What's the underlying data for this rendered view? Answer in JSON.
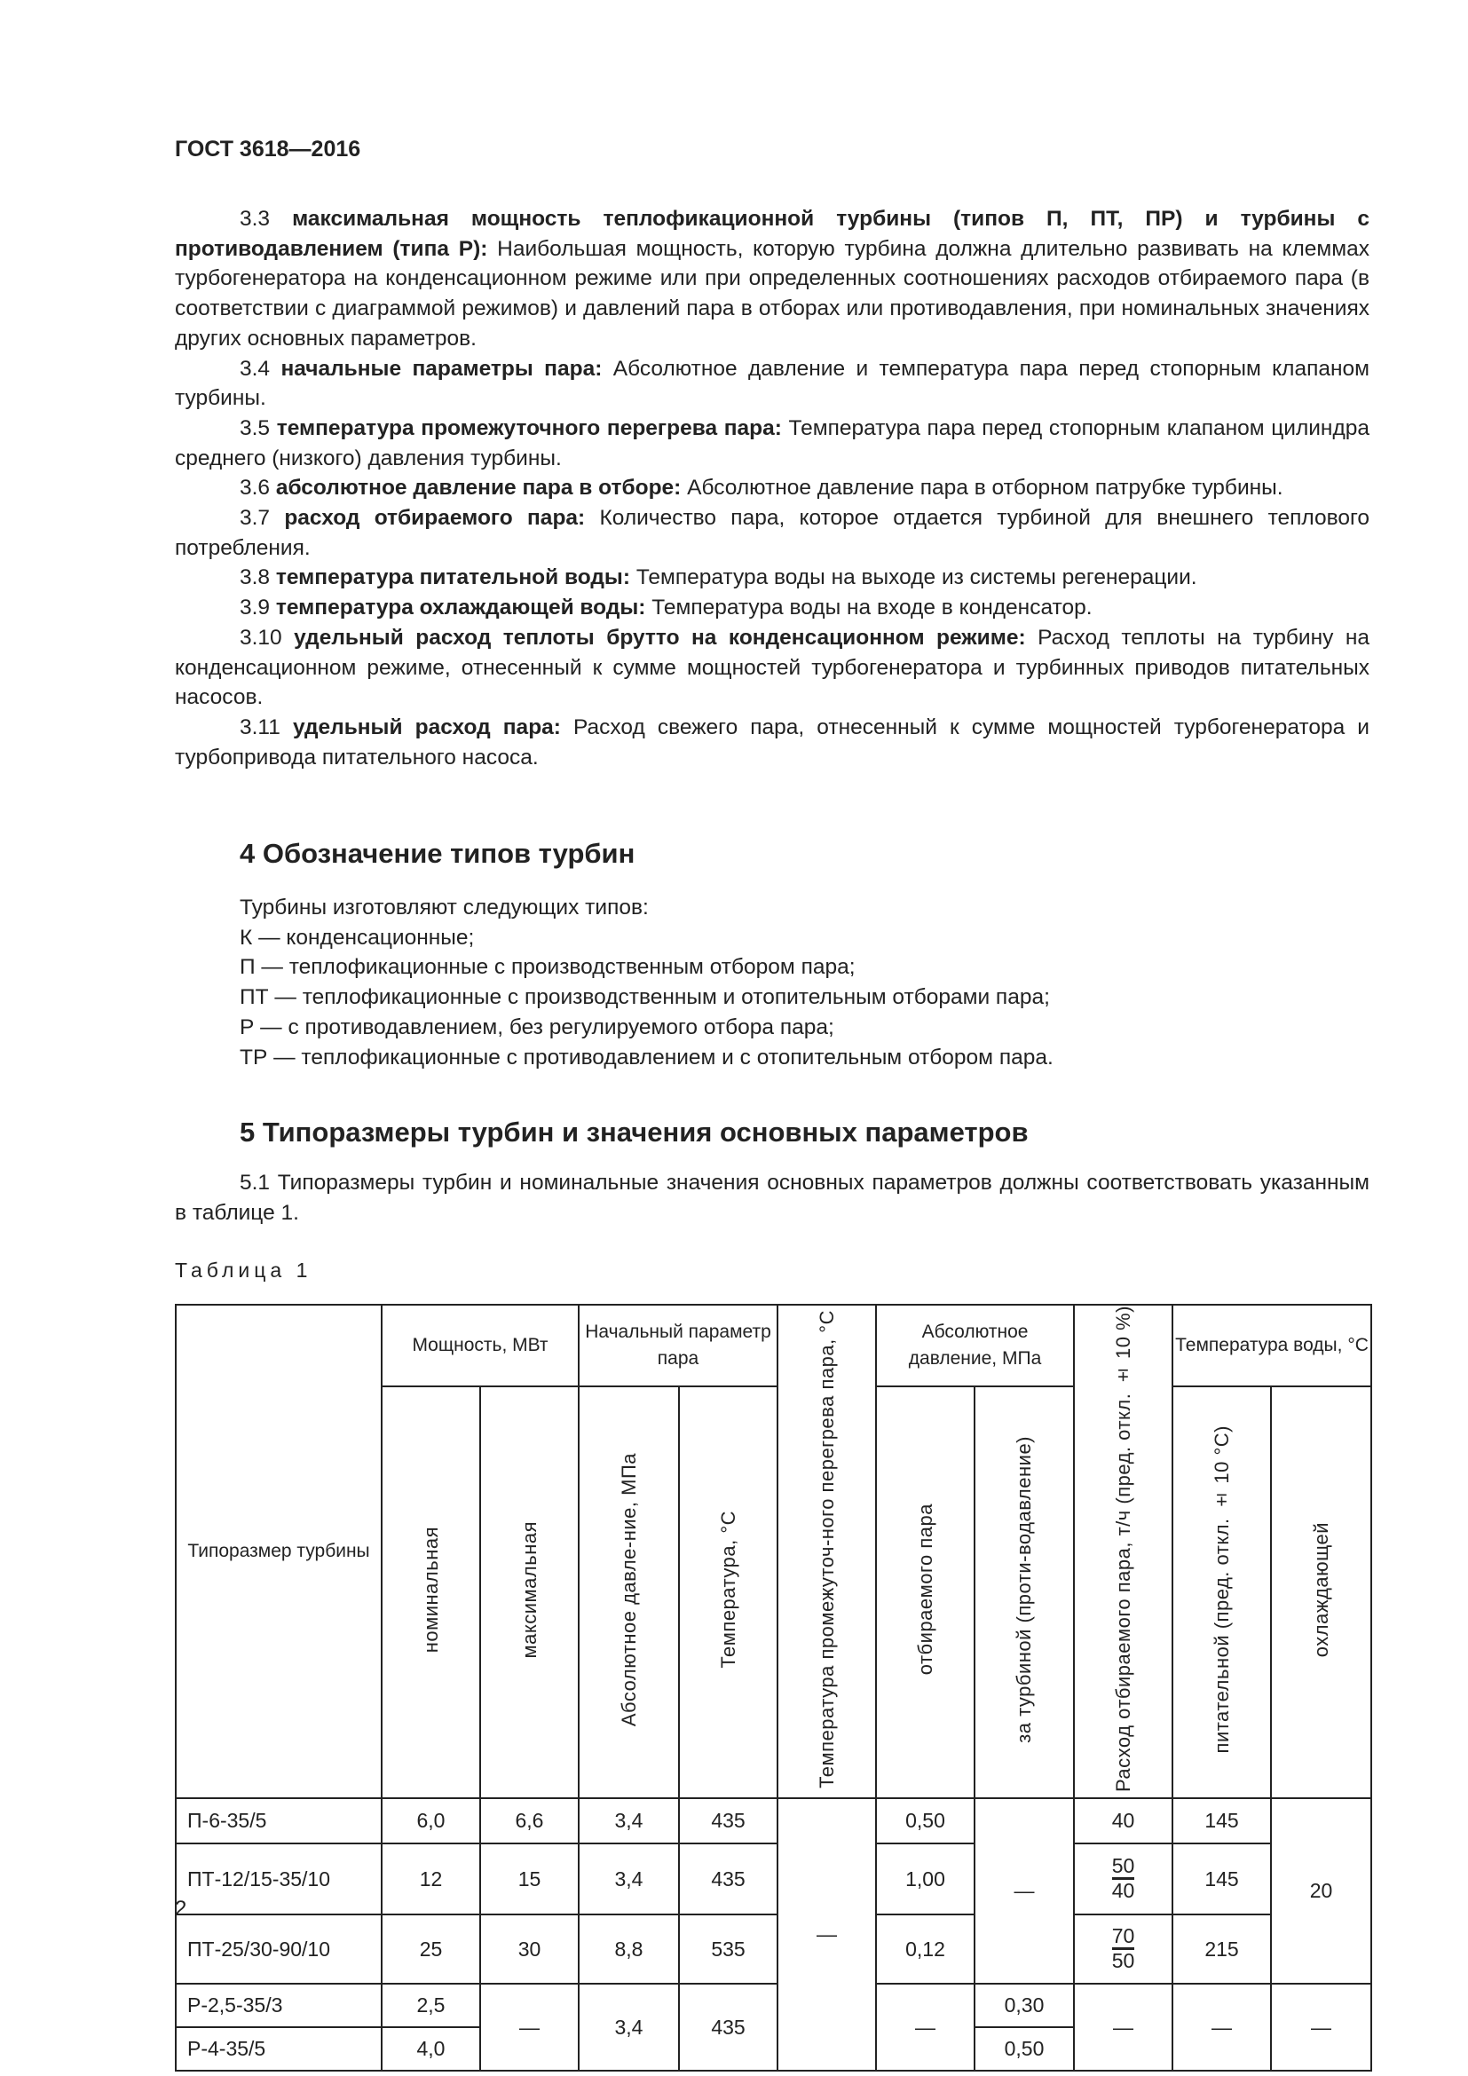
{
  "header": "ГОСТ 3618—2016",
  "definitions": [
    {
      "num": "3.3",
      "term": "максимальная мощность теплофикационной турбины (типов П, ПТ, ПР) и турбины с противодавлением (типа Р):",
      "text": "Наибольшая мощность, которую турбина должна длительно развивать на клеммах турбогенератора на конденсационном режиме или при определенных соотношениях расходов отбираемого пара (в соответствии с диаграммой режимов) и давлений пара в отборах или противодавления, при номинальных значениях других основных параметров."
    },
    {
      "num": "3.4",
      "term": "начальные параметры пара:",
      "text": "Абсолютное давление и температура пара перед стопорным клапаном турбины."
    },
    {
      "num": "3.5",
      "term": "температура промежуточного перегрева пара:",
      "text": "Температура пара перед стопорным клапаном цилиндра среднего (низкого) давления турбины."
    },
    {
      "num": "3.6",
      "term": "абсолютное давление пара в отборе:",
      "text": "Абсолютное давление пара в отборном патрубке турбины."
    },
    {
      "num": "3.7",
      "term": "расход отбираемого пара:",
      "text": "Количество пара, которое отдается турбиной для внешнего теплового потребления."
    },
    {
      "num": "3.8",
      "term": "температура питательной воды:",
      "text": "Температура воды на выходе из системы регенерации."
    },
    {
      "num": "3.9",
      "term": "температура охлаждающей воды:",
      "text": "Температура воды на входе в конденсатор."
    },
    {
      "num": "3.10",
      "term": "удельный расход теплоты брутто на конденсационном режиме:",
      "text": "Расход теплоты на турбину на конденсационном режиме, отнесенный к сумме мощностей турбогенератора и турбинных приводов питательных насосов."
    },
    {
      "num": "3.11",
      "term": "удельный расход пара:",
      "text": "Расход свежего пара, отнесенный к сумме мощностей турбогенератора и турбопривода питательного насоса."
    }
  ],
  "section4": {
    "title": "4 Обозначение типов турбин",
    "lines": [
      "Турбины изготовляют следующих типов:",
      "К — конденсационные;",
      "П — теплофикационные с производственным отбором пара;",
      "ПТ — теплофикационные с производственным и отопительным отборами пара;",
      "Р — с противодавлением, без регулируемого отбора пара;",
      "ТР — теплофикационные с противодавлением и с отопительным отбором пара."
    ]
  },
  "section5": {
    "title": "5 Типоразмеры турбин и значения основных параметров",
    "p1": "5.1 Типоразмеры турбин и номинальные значения основных параметров должны соответствовать указанным в таблице 1."
  },
  "table": {
    "caption": "Таблица 1",
    "headers": {
      "type": "Типоразмер турбины",
      "power": "Мощность, МВт",
      "power_nom": "номинальная",
      "power_max": "максимальная",
      "initial": "Начальный параметр пара",
      "initial_p": "Абсолютное давле-ние, МПа",
      "initial_t": "Температура, °С",
      "reheat": "Температура промежуточ-ного перегрева пара, °С",
      "abs": "Абсолютное давление, МПа",
      "abs_ext": "отбираемого пара",
      "abs_back": "за турбиной (проти-водавление)",
      "flow": "Расход отбираемого пара, т/ч (пред. откл. ± 10 %)",
      "water": "Температура воды, °С",
      "water_feed": "питательной (пред. откл. ± 10 °С)",
      "water_cool": "охлаждающей"
    },
    "rows": [
      {
        "type": "П-6-35/5",
        "nom": "6,0",
        "max": "6,6",
        "p": "3,4",
        "t": "435",
        "ext": "0,50",
        "flow": "40",
        "feed": "145"
      },
      {
        "type": "ПТ-12/15-35/10",
        "nom": "12",
        "max": "15",
        "p": "3,4",
        "t": "435",
        "ext": "1,00",
        "flow_num": "50",
        "flow_den": "40",
        "feed": "145"
      },
      {
        "type": "ПТ-25/30-90/10",
        "nom": "25",
        "max": "30",
        "p": "8,8",
        "t": "535",
        "ext": "0,12",
        "flow_num": "70",
        "flow_den": "50",
        "feed": "215"
      },
      {
        "type": "Р-2,5-35/3",
        "nom": "2,5",
        "back": "0,30"
      },
      {
        "type": "Р-4-35/5",
        "nom": "4,0",
        "back": "0,50"
      }
    ],
    "merged": {
      "reheat": "—",
      "back_pt": "—",
      "cool_pt": "20",
      "r_max": "—",
      "r_p": "3,4",
      "r_t": "435",
      "r_ext": "—",
      "r_flow": "—",
      "r_feed": "—",
      "r_cool": "—"
    }
  },
  "page_number": "2"
}
